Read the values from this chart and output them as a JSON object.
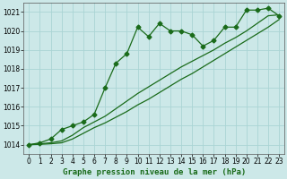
{
  "title": "",
  "xlabel": "Graphe pression niveau de la mer (hPa)",
  "ylabel": "",
  "background_color": "#cce8e8",
  "grid_color": "#aad4d4",
  "line_color": "#1a6b1a",
  "xlim": [
    -0.5,
    23.5
  ],
  "ylim": [
    1013.5,
    1021.5
  ],
  "yticks": [
    1014,
    1015,
    1016,
    1017,
    1018,
    1019,
    1020,
    1021
  ],
  "xticks": [
    0,
    1,
    2,
    3,
    4,
    5,
    6,
    7,
    8,
    9,
    10,
    11,
    12,
    13,
    14,
    15,
    16,
    17,
    18,
    19,
    20,
    21,
    22,
    23
  ],
  "series1_x": [
    0,
    1,
    2,
    3,
    4,
    5,
    6,
    7,
    8,
    9,
    10,
    11,
    12,
    13,
    14,
    15,
    16,
    17,
    18,
    19,
    20,
    21,
    22,
    23
  ],
  "series1_y": [
    1014.0,
    1014.1,
    1014.3,
    1014.8,
    1015.0,
    1015.2,
    1015.6,
    1017.0,
    1018.3,
    1018.8,
    1020.2,
    1019.7,
    1020.4,
    1020.0,
    1020.0,
    1019.8,
    1019.2,
    1019.5,
    1020.2,
    1020.2,
    1021.1,
    1021.1,
    1021.2,
    1020.8
  ],
  "series2_x": [
    0,
    1,
    2,
    3,
    4,
    5,
    6,
    7,
    8,
    9,
    10,
    11,
    12,
    13,
    14,
    15,
    16,
    17,
    18,
    19,
    20,
    21,
    22,
    23
  ],
  "series2_y": [
    1014.0,
    1014.05,
    1014.1,
    1014.2,
    1014.5,
    1014.9,
    1015.2,
    1015.5,
    1015.9,
    1016.3,
    1016.7,
    1017.05,
    1017.4,
    1017.75,
    1018.1,
    1018.4,
    1018.7,
    1019.0,
    1019.35,
    1019.65,
    1020.0,
    1020.4,
    1020.8,
    1020.85
  ],
  "series3_x": [
    0,
    1,
    2,
    3,
    4,
    5,
    6,
    7,
    8,
    9,
    10,
    11,
    12,
    13,
    14,
    15,
    16,
    17,
    18,
    19,
    20,
    21,
    22,
    23
  ],
  "series3_y": [
    1014.0,
    1014.02,
    1014.05,
    1014.1,
    1014.3,
    1014.6,
    1014.9,
    1015.15,
    1015.45,
    1015.75,
    1016.1,
    1016.4,
    1016.75,
    1017.1,
    1017.45,
    1017.75,
    1018.1,
    1018.45,
    1018.8,
    1019.15,
    1019.5,
    1019.85,
    1020.2,
    1020.6
  ]
}
